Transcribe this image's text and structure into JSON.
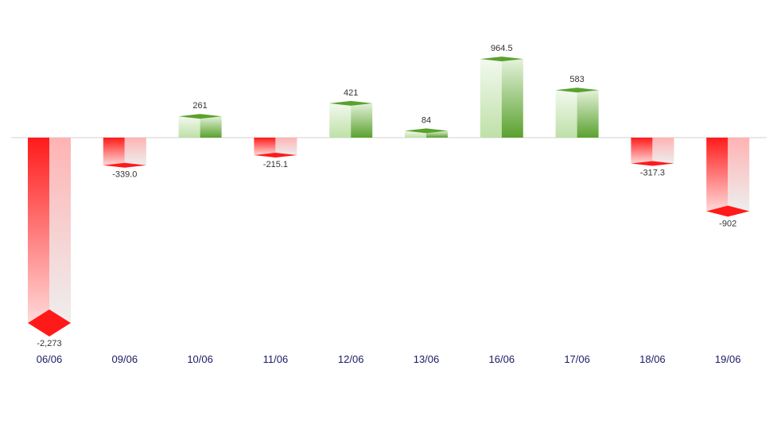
{
  "chart_data": {
    "type": "bar",
    "style": "3d-cylinder-like boxes",
    "categories": [
      "06/06",
      "09/06",
      "10/06",
      "11/06",
      "12/06",
      "13/06",
      "16/06",
      "17/06",
      "18/06",
      "19/06"
    ],
    "values": [
      -2273,
      -339.0,
      261,
      -215.1,
      421,
      84,
      964.5,
      583,
      -317.3,
      -902
    ],
    "value_labels": [
      "-2,273",
      "-339.0",
      "261",
      "-215.1",
      "421",
      "84",
      "964.5",
      "583",
      "-317.3",
      "-902"
    ],
    "ylim": [
      -2273,
      964.5
    ],
    "grid": false,
    "legend": "none",
    "title": "",
    "xlabel": "",
    "ylabel": ""
  },
  "colors": {
    "positive_dark": "#5aa12e",
    "positive_light": "#e6f3de",
    "negative_dark": "#ff1a1a",
    "negative_light": "#eeeeee",
    "baseline": "#d0d0d0",
    "category_text": "#1a1a66",
    "value_text": "#333333"
  }
}
